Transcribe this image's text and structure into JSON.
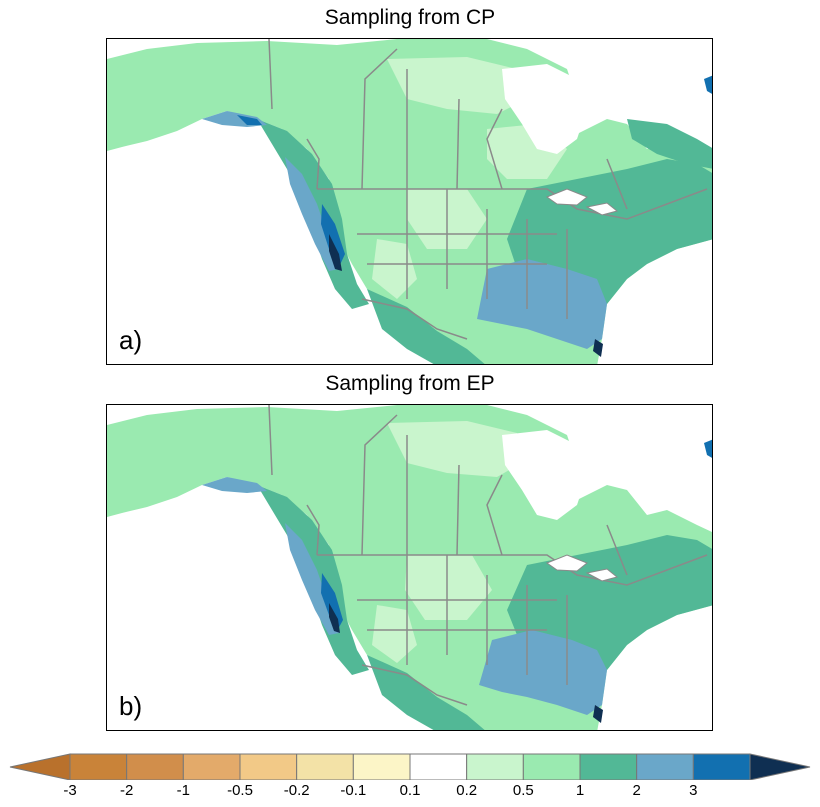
{
  "panels": [
    {
      "title": "Sampling from CP",
      "label": "a)"
    },
    {
      "title": "Sampling from EP",
      "label": "b)"
    }
  ],
  "colorbar": {
    "ticks": [
      "-3",
      "-2",
      "-1",
      "-0.5",
      "-0.2",
      "-0.1",
      "0.1",
      "0.2",
      "0.5",
      "1",
      "2",
      "3"
    ],
    "colors": [
      "#c98339",
      "#d18e4b",
      "#e3aa6a",
      "#f2c987",
      "#f3e2a7",
      "#fcf5c7",
      "#ffffff",
      "#c9f5cd",
      "#9aeab0",
      "#52b896",
      "#6aa7c9",
      "#1270b0"
    ],
    "end_low_color": "#b9712c",
    "end_high_color": "#0f2f52"
  }
}
